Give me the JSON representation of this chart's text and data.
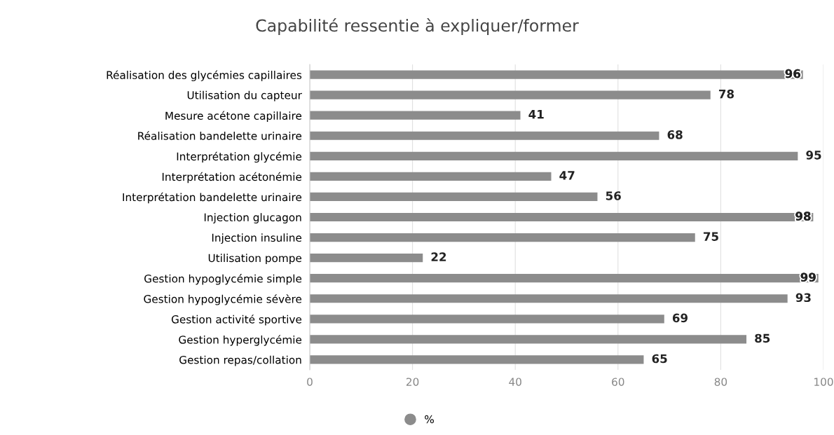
{
  "chart_data": {
    "type": "bar",
    "orientation": "horizontal",
    "title": "Capabilité ressentie à expliquer/former",
    "categories": [
      "Réalisation des glycémies capillaires",
      "Utilisation du capteur",
      "Mesure acétone capillaire",
      "Réalisation bandelette urinaire",
      "Interprétation glycémie",
      "Interprétation acétonémie",
      "Interprétation bandelette urinaire",
      "Injection glucagon",
      "Injection insuline",
      "Utilisation pompe",
      "Gestion hypoglycémie simple",
      "Gestion hypoglycémie sévère",
      "Gestion activité sportive",
      "Gestion hyperglycémie",
      "Gestion repas/collation"
    ],
    "series": [
      {
        "name": "%",
        "color": "#8c8c8c",
        "values": [
          96,
          78,
          41,
          68,
          95,
          47,
          56,
          98,
          75,
          22,
          99,
          93,
          69,
          85,
          65
        ]
      }
    ],
    "xlim": [
      0,
      100
    ],
    "xticks": [
      0,
      20,
      40,
      60,
      80,
      100
    ],
    "grid": "x",
    "data_labels": true,
    "legend": "bottom"
  }
}
